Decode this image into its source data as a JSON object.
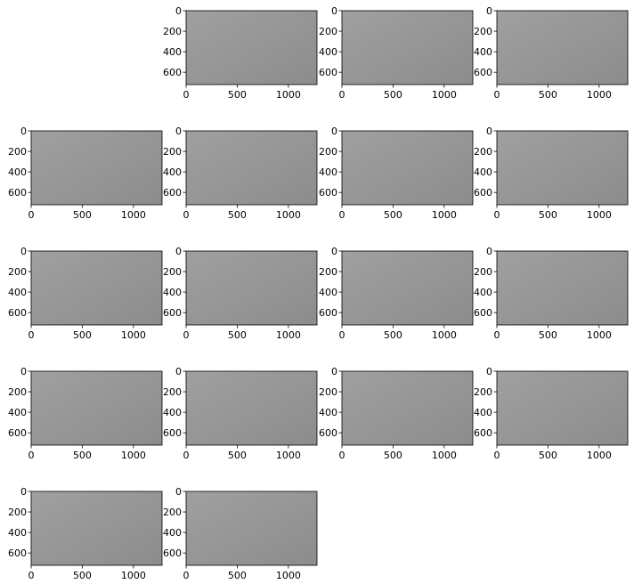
{
  "figure": {
    "rows": 5,
    "cols": 4,
    "x_ticks": [
      0,
      500,
      1000
    ],
    "y_ticks": [
      0,
      200,
      400,
      600
    ],
    "x_range": [
      0,
      1280
    ],
    "y_range": [
      0,
      720
    ],
    "panel_bg": "#8c8c8c",
    "board_dark": "#1e1e1e",
    "board_light": "#d2d2d2"
  },
  "panels": [
    {
      "id": "p1",
      "row": 0,
      "col": 1,
      "board": {
        "cx": 550,
        "cy": 330,
        "w": 320,
        "h": 360,
        "rot": 40,
        "skew": 0,
        "n": 8
      }
    },
    {
      "id": "p2",
      "row": 0,
      "col": 2,
      "board": {
        "cx": 640,
        "cy": 320,
        "w": 360,
        "h": 290,
        "rot": 0,
        "skew": 0,
        "n": 8
      }
    },
    {
      "id": "p3",
      "row": 0,
      "col": 3,
      "board": {
        "cx": 640,
        "cy": 360,
        "w": 1300,
        "h": 760,
        "rot": 0,
        "skew": 0,
        "n": 9,
        "light": true
      }
    },
    {
      "id": "p4",
      "row": 1,
      "col": 0,
      "board": {
        "cx": 680,
        "cy": 330,
        "w": 600,
        "h": 400,
        "rot": 0,
        "skew": 0,
        "n": 9
      }
    },
    {
      "id": "p5",
      "row": 1,
      "col": 1,
      "board": {
        "cx": 1060,
        "cy": 420,
        "w": 330,
        "h": 350,
        "rot": -6,
        "skew": 0,
        "n": 8
      }
    },
    {
      "id": "p6",
      "row": 1,
      "col": 2,
      "board": {
        "cx": 860,
        "cy": 340,
        "w": 500,
        "h": 380,
        "rot": -4,
        "skew": 0,
        "n": 9
      }
    },
    {
      "id": "p7",
      "row": 1,
      "col": 3,
      "board": {
        "cx": 200,
        "cy": 330,
        "w": 220,
        "h": 270,
        "rot": 0,
        "skew": 0,
        "n": 7
      }
    },
    {
      "id": "p8",
      "row": 2,
      "col": 0,
      "board": {
        "cx": 210,
        "cy": 470,
        "w": 320,
        "h": 300,
        "rot": 0,
        "skew": 0,
        "n": 8
      }
    },
    {
      "id": "p9",
      "row": 2,
      "col": 1,
      "board": {
        "cx": 850,
        "cy": 370,
        "w": 320,
        "h": 360,
        "rot": 0,
        "skew": 0,
        "n": 8
      }
    },
    {
      "id": "p10",
      "row": 2,
      "col": 2,
      "board": {
        "cx": 720,
        "cy": 470,
        "w": 520,
        "h": 300,
        "rot": -5,
        "skew": 0,
        "n": 9
      }
    },
    {
      "id": "p11",
      "row": 2,
      "col": 3,
      "board": {
        "cx": 620,
        "cy": 470,
        "w": 560,
        "h": 400,
        "rot": 0,
        "skew": 0,
        "n": 9
      }
    },
    {
      "id": "p12",
      "row": 3,
      "col": 0,
      "board": {
        "cx": 640,
        "cy": 360,
        "w": 1300,
        "h": 700,
        "rot": 0,
        "skew": 0,
        "n": 10,
        "light": true
      }
    },
    {
      "id": "p13",
      "row": 3,
      "col": 1,
      "board": {
        "cx": 420,
        "cy": 360,
        "w": 260,
        "h": 280,
        "rot": 0,
        "skew": 0,
        "n": 7
      }
    },
    {
      "id": "p14",
      "row": 3,
      "col": 2,
      "board": {
        "cx": 1060,
        "cy": 330,
        "w": 320,
        "h": 340,
        "rot": -6,
        "skew": 0,
        "n": 8
      }
    },
    {
      "id": "p15",
      "row": 3,
      "col": 3,
      "board": {
        "cx": 240,
        "cy": 330,
        "w": 340,
        "h": 340,
        "rot": -4,
        "skew": 0,
        "n": 8
      }
    },
    {
      "id": "p16",
      "row": 4,
      "col": 0,
      "board": {
        "cx": 730,
        "cy": 300,
        "w": 300,
        "h": 340,
        "rot": 18,
        "skew": 0,
        "n": 8
      }
    },
    {
      "id": "p17",
      "row": 4,
      "col": 1,
      "board": {
        "cx": 1090,
        "cy": 220,
        "w": 360,
        "h": 380,
        "rot": 0,
        "skew": 0,
        "n": 8
      }
    }
  ]
}
